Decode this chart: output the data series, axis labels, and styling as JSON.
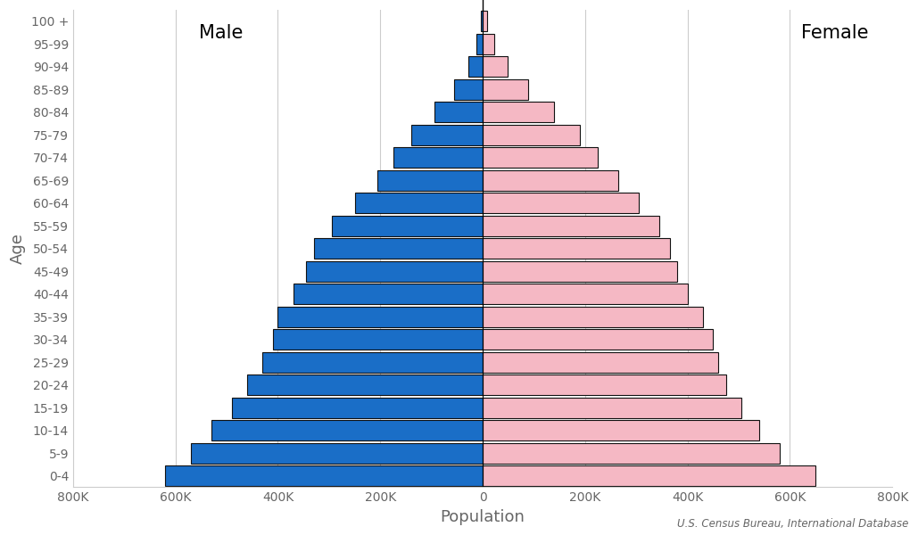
{
  "age_groups": [
    "0-4",
    "5-9",
    "10-14",
    "15-19",
    "20-24",
    "25-29",
    "30-34",
    "35-39",
    "40-44",
    "45-49",
    "50-54",
    "55-59",
    "60-64",
    "65-69",
    "70-74",
    "75-79",
    "80-84",
    "85-89",
    "90-94",
    "95-99",
    "100 +"
  ],
  "male": [
    620000,
    570000,
    530000,
    490000,
    460000,
    430000,
    410000,
    400000,
    370000,
    345000,
    330000,
    295000,
    250000,
    205000,
    175000,
    140000,
    95000,
    55000,
    28000,
    12000,
    3000
  ],
  "female": [
    650000,
    580000,
    540000,
    505000,
    475000,
    460000,
    450000,
    430000,
    400000,
    380000,
    365000,
    345000,
    305000,
    265000,
    225000,
    190000,
    140000,
    88000,
    48000,
    22000,
    8000
  ],
  "male_color": "#1a6ec7",
  "female_color": "#f5b8c4",
  "bar_edge_color": "#111111",
  "xlabel": "Population",
  "ylabel": "Age",
  "xlim": 800000,
  "xtick_values": [
    -800000,
    -600000,
    -400000,
    -200000,
    0,
    200000,
    400000,
    600000,
    800000
  ],
  "xtick_labels": [
    "800K",
    "600K",
    "400K",
    "200K",
    "0",
    "200K",
    "400K",
    "600K",
    "800K"
  ],
  "male_label": "Male",
  "female_label": "Female",
  "source_text": "U.S. Census Bureau, International Database",
  "background_color": "#ffffff",
  "grid_color": "#cccccc",
  "text_color": "#666666",
  "label_fontsize": 13,
  "tick_fontsize": 10,
  "male_female_fontsize": 15,
  "bar_linewidth": 0.8
}
